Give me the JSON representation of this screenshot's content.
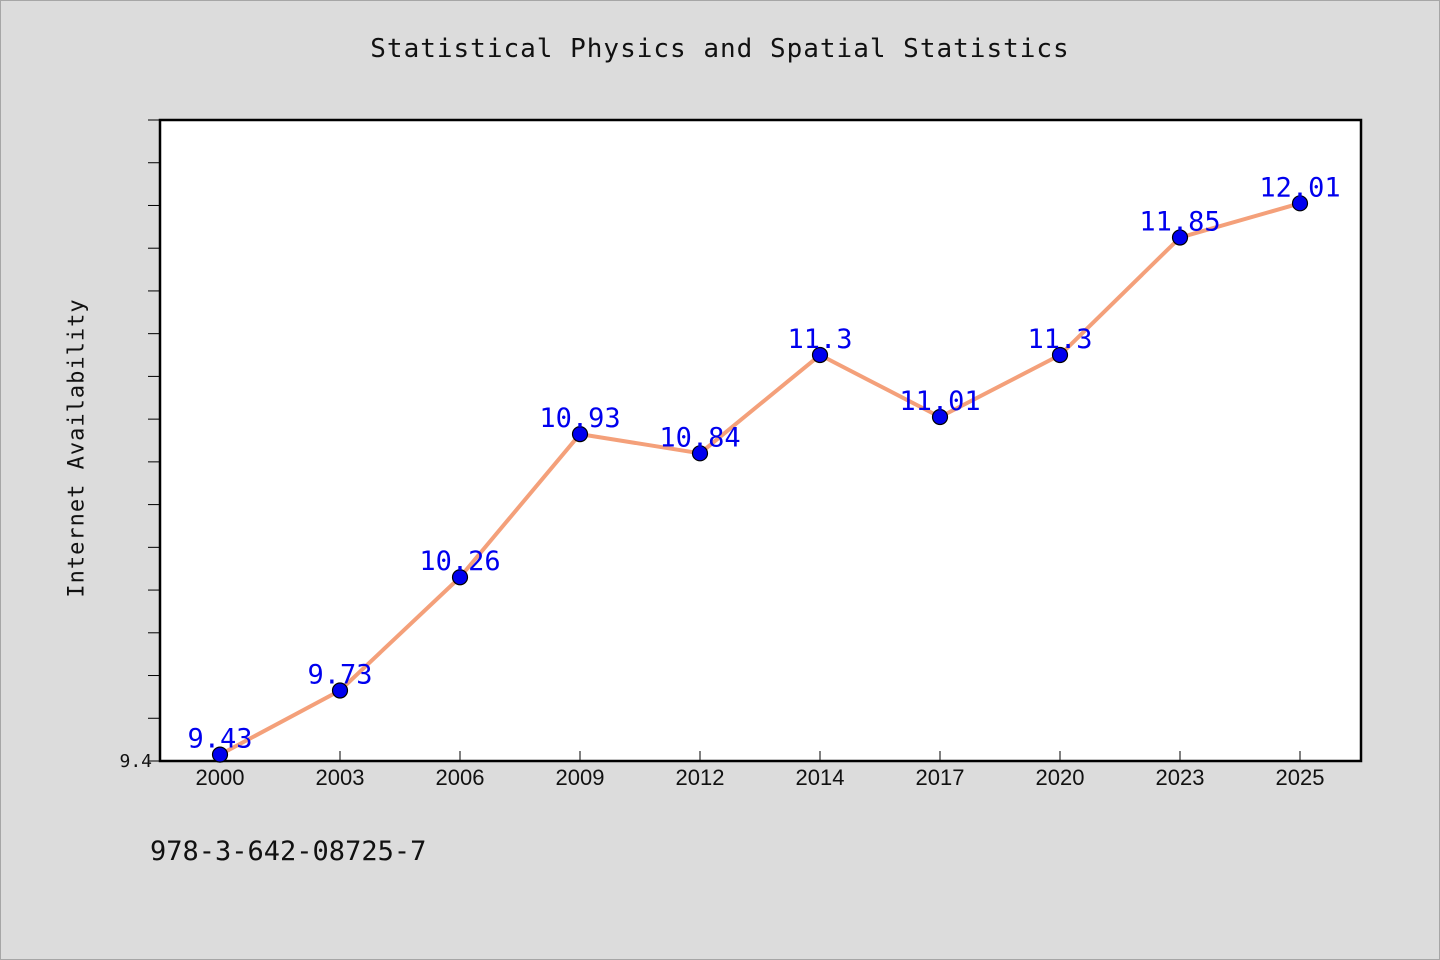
{
  "chart_data": {
    "type": "line",
    "title": "Statistical Physics and Spatial Statistics",
    "xlabel": "",
    "ylabel": "Internet Availability",
    "categories": [
      "2000",
      "2003",
      "2006",
      "2009",
      "2012",
      "2014",
      "2017",
      "2020",
      "2023",
      "2025"
    ],
    "series": [
      {
        "values": [
          9.43,
          9.73,
          10.26,
          10.93,
          10.84,
          11.3,
          11.01,
          11.3,
          11.85,
          12.01
        ]
      }
    ],
    "data_labels": [
      "9.43",
      "9.73",
      "10.26",
      "10.93",
      "10.84",
      "11.3",
      "11.01",
      "11.3",
      "11.85",
      "12.01"
    ],
    "y_tick_label": "9.4",
    "ylim": [
      9.4,
      12.4
    ],
    "grid": false,
    "colors": {
      "line": "#f4a07a",
      "marker": "#0000ee",
      "label": "#0000ee",
      "background": "#dcdcdc",
      "plot_bg": "#ffffff"
    }
  },
  "footer": {
    "isbn": "978-3-642-08725-7"
  }
}
